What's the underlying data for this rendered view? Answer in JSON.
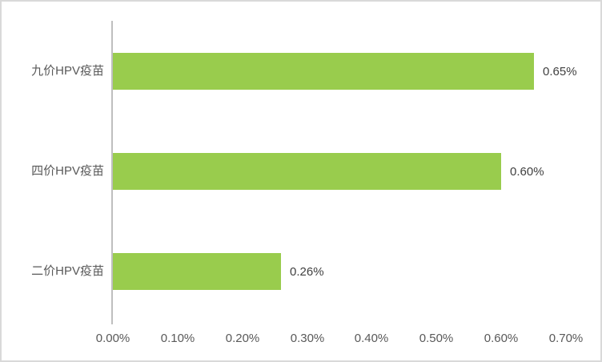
{
  "chart_data": {
    "type": "bar",
    "orientation": "horizontal",
    "title": "",
    "categories": [
      "九价HPV疫苗",
      "四价HPV疫苗",
      "二价HPV疫苗"
    ],
    "values": [
      0.65,
      0.6,
      0.26
    ],
    "value_labels": [
      "0.65%",
      "0.60%",
      "0.26%"
    ],
    "x_ticks": [
      "0.00%",
      "0.10%",
      "0.20%",
      "0.30%",
      "0.40%",
      "0.50%",
      "0.60%",
      "0.70%"
    ],
    "xlim": [
      0,
      0.7
    ],
    "gridlines": false,
    "legend": null,
    "colors": {
      "bar": "#99CC4D",
      "axis_line": "#BFBFBF",
      "category_label": "#595959",
      "value_label": "#404040",
      "tick_label": "#595959",
      "border": "#D9D9D9",
      "background": "#FFFFFF"
    }
  }
}
